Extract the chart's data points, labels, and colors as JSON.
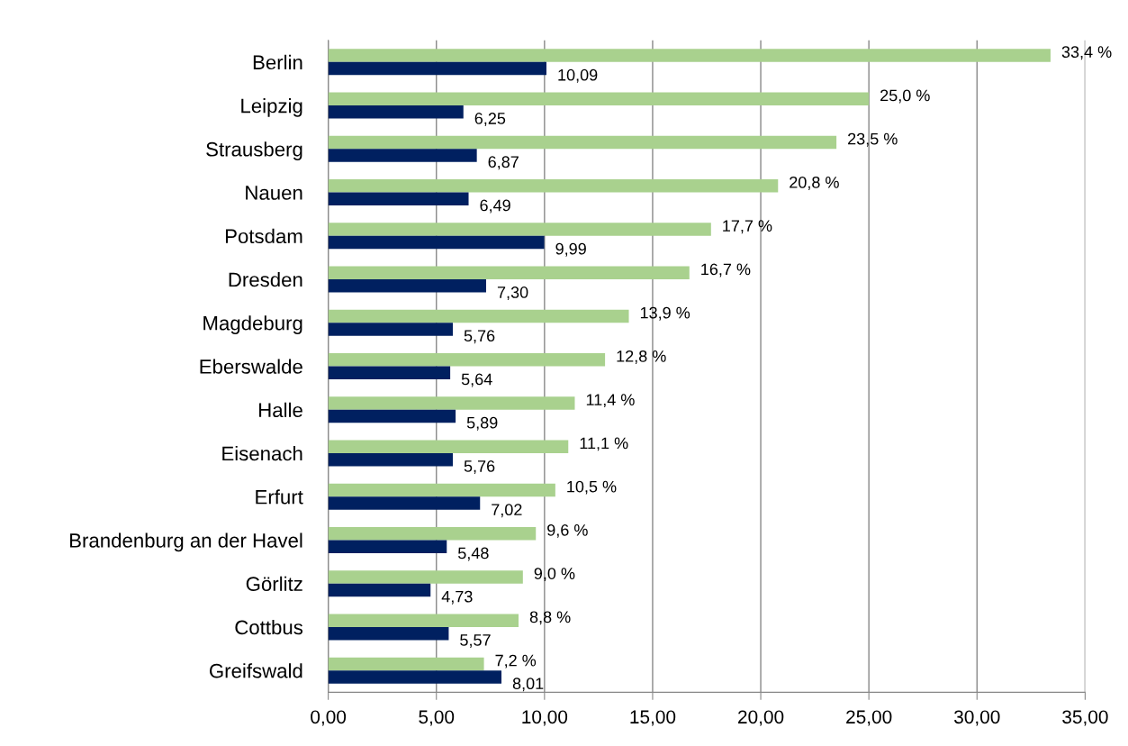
{
  "chart_data": {
    "type": "bar",
    "orientation": "horizontal",
    "categories": [
      "Berlin",
      "Leipzig",
      "Strausberg",
      "Nauen",
      "Potsdam",
      "Dresden",
      "Magdeburg",
      "Eberswalde",
      "Halle",
      "Eisenach",
      "Erfurt",
      "Brandenburg an der Havel",
      "Görlitz",
      "Cottbus",
      "Greifswald"
    ],
    "series": [
      {
        "color": "#a9d18e",
        "values": [
          33.4,
          25.0,
          23.5,
          20.8,
          17.7,
          16.7,
          13.9,
          12.8,
          11.4,
          11.1,
          10.5,
          9.6,
          9.0,
          8.8,
          7.2
        ],
        "value_labels": [
          "33,4 %",
          "25,0 %",
          "23,5 %",
          "20,8 %",
          "17,7 %",
          "16,7 %",
          "13,9 %",
          "12,8 %",
          "11,4 %",
          "11,1 %",
          "10,5 %",
          "9,6 %",
          "9,0 %",
          "8,8 %",
          "7,2 %"
        ]
      },
      {
        "color": "#002060",
        "values": [
          10.09,
          6.25,
          6.87,
          6.49,
          9.99,
          7.3,
          5.76,
          5.64,
          5.89,
          5.76,
          7.02,
          5.48,
          4.73,
          5.57,
          8.01
        ],
        "value_labels": [
          "10,09",
          "6,25",
          "6,87",
          "6,49",
          "9,99",
          "7,30",
          "5,76",
          "5,64",
          "5,89",
          "5,76",
          "7,02",
          "5,48",
          "4,73",
          "5,57",
          "8,01"
        ]
      }
    ],
    "xlim": [
      0,
      35
    ],
    "xticks": [
      {
        "value": 0,
        "label": "0,00"
      },
      {
        "value": 5,
        "label": "5,00"
      },
      {
        "value": 10,
        "label": "10,00"
      },
      {
        "value": 15,
        "label": "15,00"
      },
      {
        "value": 20,
        "label": "20,00"
      },
      {
        "value": 25,
        "label": "25,00"
      },
      {
        "value": 30,
        "label": "30,00"
      },
      {
        "value": 35,
        "label": "35,00"
      }
    ],
    "grid": "x",
    "legend": false
  }
}
